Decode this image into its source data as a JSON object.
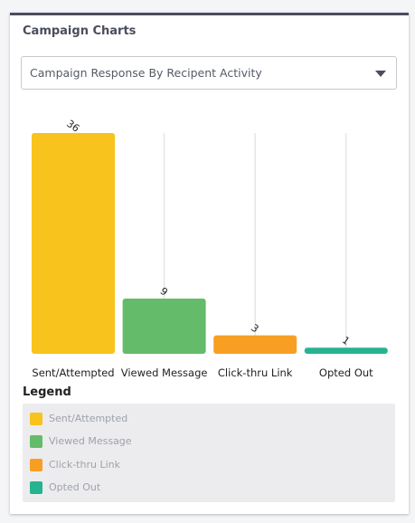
{
  "card": {
    "title": "Campaign Charts",
    "select_value": "Campaign Response By Recipent Activity"
  },
  "legend": {
    "title": "Legend",
    "items": [
      {
        "label": "Sent/Attempted",
        "color": "#f8c31c"
      },
      {
        "label": "Viewed Message",
        "color": "#64bb6a"
      },
      {
        "label": "Click-thru Link",
        "color": "#f89f23"
      },
      {
        "label": "Opted Out",
        "color": "#26b38f"
      }
    ]
  },
  "chart_data": {
    "type": "bar",
    "categories": [
      "Sent/Attempted",
      "Viewed Message",
      "Click-thru Link",
      "Opted Out"
    ],
    "values": [
      36,
      9,
      3,
      1
    ],
    "data_labels": [
      "36",
      "9",
      "3",
      "1"
    ],
    "colors": [
      "#f8c31c",
      "#64bb6a",
      "#f89f23",
      "#26b38f"
    ],
    "ylim": [
      0,
      36
    ],
    "grid": true,
    "legend_position": "bottom"
  }
}
